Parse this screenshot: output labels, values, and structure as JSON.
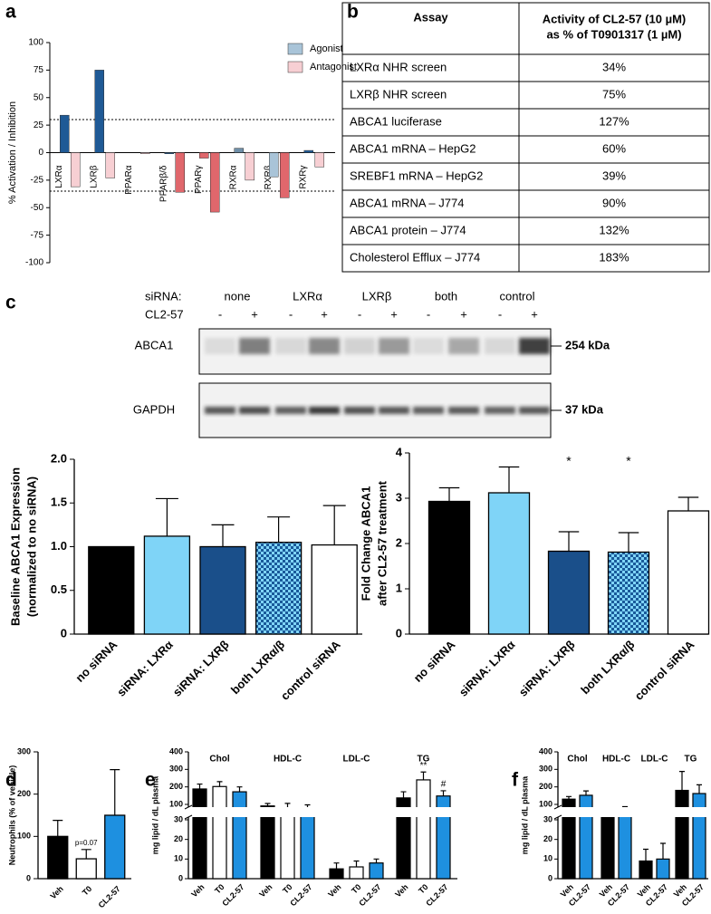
{
  "panel_labels": [
    "a",
    "b",
    "c",
    "d",
    "e",
    "f"
  ],
  "table": {
    "header": [
      "Assay",
      [
        "Activity of CL2-57 (10 µM)",
        "as % of  T0901317 (1 µM)"
      ]
    ],
    "rows": [
      [
        "LXRα NHR screen",
        "34%"
      ],
      [
        "LXRβ NHR screen",
        "75%"
      ],
      [
        "ABCA1 luciferase",
        "127%"
      ],
      [
        "ABCA1 mRNA – HepG2",
        "60%"
      ],
      [
        "SREBF1 mRNA – HepG2",
        "39%"
      ],
      [
        "ABCA1 mRNA – J774",
        "90%"
      ],
      [
        "ABCA1 protein – J774",
        "132%"
      ],
      [
        "Cholesterol Efflux – J774",
        "183%"
      ]
    ]
  },
  "blot": {
    "group_label": "siRNA:",
    "groups": [
      "none",
      "LXRα",
      "LXRβ",
      "both",
      "control"
    ],
    "treatment_label": "CL2-57",
    "treatment_marks": [
      "-",
      "+",
      "-",
      "+",
      "-",
      "+",
      "-",
      "+",
      "-",
      "+"
    ],
    "rows": [
      {
        "label": "ABCA1",
        "size": "254 kDa"
      },
      {
        "label": "GAPDH",
        "size": "37 kDa"
      }
    ]
  },
  "chart_data": [
    {
      "type": "bar",
      "ylabel": "% Activation / Inhibition",
      "categories": [
        "LXRα",
        "LXRβ",
        "PPARα",
        "PPARβ/δ",
        "PPARγ",
        "RXRα",
        "RXRβ",
        "RXRγ"
      ],
      "series": [
        {
          "name": "Agonist",
          "color": "#a9c4d8",
          "colors": [
            "#1f5a96",
            "#1f5a96",
            "#1f5a96",
            "#1f5a96",
            "#e0676c",
            "#6f8fa8",
            "#a9c4d8",
            "#1f5a96"
          ],
          "values": [
            34,
            75,
            0,
            -1,
            -5,
            4,
            -22,
            2
          ]
        },
        {
          "name": "Antagonist",
          "color": "#f7cfd3",
          "colors": [
            "#f7cfd3",
            "#f7cfd3",
            "#f7cfd3",
            "#e0676c",
            "#e0676c",
            "#f7cfd3",
            "#e0676c",
            "#f7cfd3"
          ],
          "values": [
            -31,
            -23,
            -1,
            -36,
            -54,
            -25,
            -41,
            -13
          ]
        }
      ],
      "ylim": [
        -100,
        100
      ],
      "yticks": [
        -100,
        -75,
        -50,
        -25,
        0,
        25,
        50,
        75,
        100
      ],
      "reference_lines": [
        30,
        -35
      ],
      "legend": "top-right"
    },
    {
      "type": "errorbar",
      "ylabel": [
        "Baseline ABCA1 Expression",
        "(normalized to no siRNA)"
      ],
      "categories": [
        "no siRNA",
        "siRNA: LXRα",
        "siRNA: LXRβ",
        "both LXRα/β",
        "control siRNA"
      ],
      "values": [
        1,
        1.12,
        1,
        1.05,
        1.02
      ],
      "errors": [
        0,
        0.43,
        0.25,
        0.29,
        0.45
      ],
      "colors": [
        "#000000",
        "#7fd4f7",
        "#1a4f8a",
        "#7fd4f7",
        "#ffffff"
      ],
      "patterns": [
        "solid",
        "solid",
        "solid",
        "checkered",
        "solid"
      ],
      "ylim": [
        0,
        2
      ],
      "yticks": [
        0,
        0.5,
        {
          "value": 1,
          "label": "1.0"
        },
        1.5,
        {
          "value": 2,
          "label": "2.0"
        }
      ]
    },
    {
      "type": "errorbar",
      "ylabel": [
        "Fold Change ABCA1",
        "after CL2-57 treatment"
      ],
      "categories": [
        "no siRNA",
        "siRNA: LXRα",
        "siRNA: LXRβ",
        "both LXRα/β",
        "control siRNA"
      ],
      "values": [
        2.93,
        3.12,
        1.83,
        1.81,
        2.72
      ],
      "errors": [
        0.3,
        0.57,
        0.43,
        0.43,
        0.3
      ],
      "colors": [
        "#000000",
        "#7fd4f7",
        "#1a4f8a",
        "#7fd4f7",
        "#ffffff"
      ],
      "patterns": [
        "solid",
        "solid",
        "solid",
        "checkered",
        "solid"
      ],
      "annotations": [
        null,
        null,
        "*",
        "*",
        null
      ],
      "ylim": [
        0,
        4
      ],
      "yticks": [
        0,
        1,
        2,
        3,
        4
      ]
    },
    {
      "type": "errorbar",
      "ylabel": [
        "Neutrophils (% of vehicle)"
      ],
      "categories": [
        "Veh",
        "T0",
        "CL2-57"
      ],
      "values": [
        100,
        47,
        150
      ],
      "errors": [
        38,
        22,
        108
      ],
      "colors": [
        "#000000",
        "#ffffff",
        "#1e90e0"
      ],
      "patterns": [
        "solid",
        "solid",
        "solid"
      ],
      "annotations": [
        null,
        "p=0.07",
        null
      ],
      "ylim": [
        0,
        300
      ],
      "yticks": [
        0,
        100,
        200,
        300
      ]
    },
    {
      "type": "broken_bar",
      "ylabel": "mg lipid / dL plasma",
      "colors": [
        "#000000",
        "#ffffff",
        "#1e90e0"
      ],
      "segments": [
        {
          "ylim": [
            0,
            30
          ],
          "yticks": [
            0,
            10,
            20,
            30
          ]
        },
        {
          "ylim": [
            100,
            400
          ],
          "yticks": [
            100,
            200,
            300,
            400
          ]
        }
      ],
      "groups": [
        {
          "name": "Chol",
          "categories": [
            "Veh",
            "T0",
            "CL2-57"
          ],
          "values": [
            188,
            202,
            172
          ],
          "errors": [
            28,
            28,
            28
          ]
        },
        {
          "name": "HDL-C",
          "categories": [
            "Veh",
            "T0",
            "CL2-57"
          ],
          "values": [
            93,
            84,
            78
          ],
          "errors": [
            12,
            22,
            20
          ]
        },
        {
          "name": "LDL-C",
          "categories": [
            "Veh",
            "T0",
            "CL2-57"
          ],
          "values": [
            5,
            6,
            8
          ],
          "errors": [
            3,
            3,
            2
          ]
        },
        {
          "name": "TG",
          "categories": [
            "Veh",
            "T0",
            "CL2-57"
          ],
          "values": [
            137,
            240,
            148
          ],
          "errors": [
            35,
            45,
            30
          ],
          "annotations": [
            null,
            "**",
            "#"
          ]
        }
      ]
    },
    {
      "type": "broken_bar",
      "ylabel": "mg lipid / dL plasma",
      "colors": [
        "#000000",
        "#1e90e0"
      ],
      "segments": [
        {
          "ylim": [
            0,
            30
          ],
          "yticks": [
            0,
            10,
            20,
            30
          ]
        },
        {
          "ylim": [
            100,
            400
          ],
          "yticks": [
            100,
            200,
            300,
            400
          ]
        }
      ],
      "groups": [
        {
          "name": "Chol",
          "categories": [
            "Veh",
            "CL2-57"
          ],
          "values": [
            130,
            152
          ],
          "errors": [
            15,
            25
          ]
        },
        {
          "name": "HDL-C",
          "categories": [
            "Veh",
            "CL2-57"
          ],
          "values": [
            70,
            80
          ],
          "errors": [
            8,
            10
          ]
        },
        {
          "name": "LDL-C",
          "categories": [
            "Veh",
            "CL2-57"
          ],
          "values": [
            9,
            10
          ],
          "errors": [
            6,
            8
          ]
        },
        {
          "name": "TG",
          "categories": [
            "Veh",
            "CL2-57"
          ],
          "values": [
            180,
            162
          ],
          "errors": [
            108,
            50
          ]
        }
      ]
    }
  ]
}
